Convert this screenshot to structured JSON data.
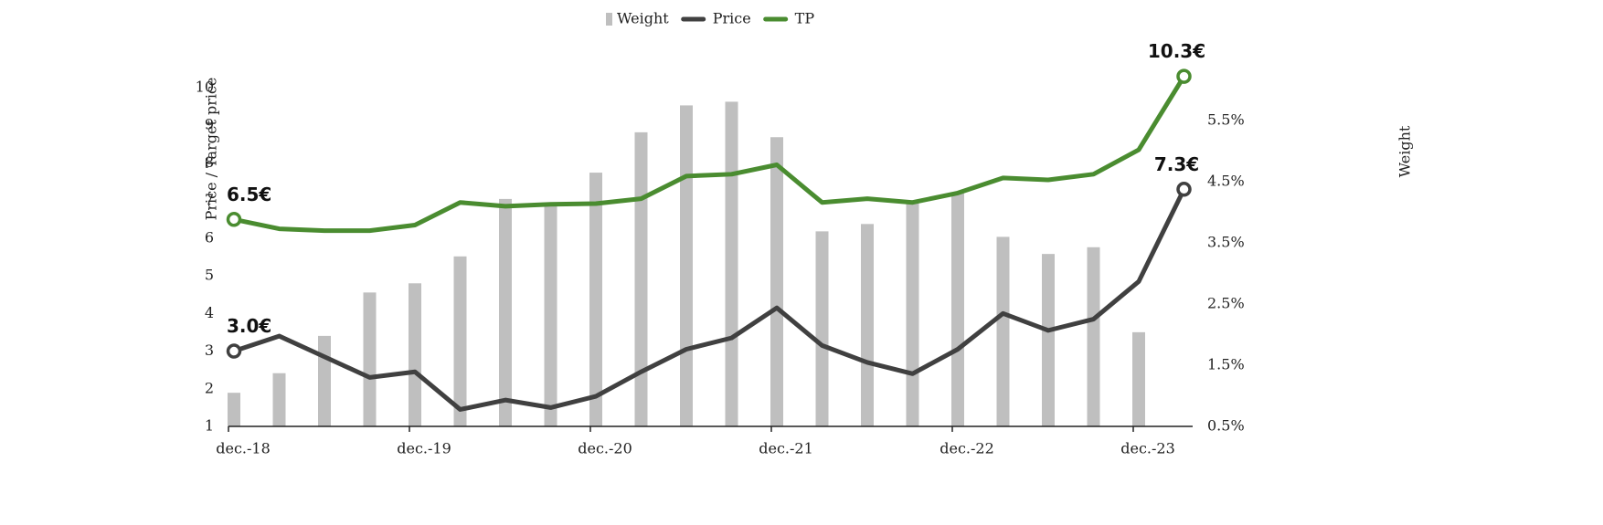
{
  "chart_data": {
    "type": "bar_line",
    "y_label": "Price / Target price",
    "y2_label": "Weight",
    "categories": [
      "dec.-18",
      null,
      null,
      null,
      "dec.-19",
      null,
      null,
      null,
      "dec.-20",
      null,
      null,
      null,
      "dec.-21",
      null,
      null,
      null,
      "dec.-22",
      null,
      null,
      null,
      "dec.-23",
      null
    ],
    "series": [
      {
        "name": "Weight",
        "type": "bar",
        "axis": "y2",
        "color": "#bfbfbf",
        "values": [
          1.05,
          1.37,
          1.98,
          2.69,
          2.84,
          3.28,
          4.22,
          4.13,
          4.65,
          5.31,
          5.75,
          5.81,
          5.23,
          3.69,
          3.81,
          4.19,
          4.31,
          3.6,
          3.32,
          3.43,
          2.04,
          null
        ]
      },
      {
        "name": "Price",
        "type": "line",
        "color": "#404040",
        "values": [
          3.0,
          3.4,
          2.85,
          2.3,
          2.45,
          1.45,
          1.7,
          1.5,
          1.8,
          2.45,
          3.05,
          3.35,
          4.15,
          3.15,
          2.7,
          2.4,
          3.05,
          4.0,
          3.55,
          3.85,
          4.85,
          7.3
        ],
        "value_labels": [
          "3.0€",
          null,
          null,
          null,
          null,
          null,
          null,
          null,
          null,
          null,
          null,
          null,
          null,
          null,
          null,
          null,
          null,
          null,
          null,
          null,
          null,
          "7.3€"
        ]
      },
      {
        "name": "TP",
        "type": "line",
        "color": "#4a8c30",
        "values": [
          6.5,
          6.25,
          6.2,
          6.2,
          6.35,
          6.95,
          6.85,
          6.9,
          6.92,
          7.05,
          7.65,
          7.7,
          7.95,
          6.95,
          7.05,
          6.95,
          7.2,
          7.6,
          7.55,
          7.7,
          8.35,
          10.3
        ],
        "value_labels": [
          "6.5€",
          null,
          null,
          null,
          null,
          null,
          null,
          null,
          null,
          null,
          null,
          null,
          null,
          null,
          null,
          null,
          null,
          null,
          null,
          null,
          null,
          "10.3€"
        ]
      }
    ],
    "ylim": [
      1,
      10
    ],
    "yticks": [
      1,
      2,
      3,
      4,
      5,
      6,
      7,
      8,
      9,
      10
    ],
    "y2lim": [
      0.5,
      6.04
    ],
    "y2ticks": [
      {
        "value": 0.5,
        "label": "0.5%"
      },
      {
        "value": 1.5,
        "label": "1.5%"
      },
      {
        "value": 2.5,
        "label": "2.5%"
      },
      {
        "value": 3.5,
        "label": "3.5%"
      },
      {
        "value": 4.5,
        "label": "4.5%"
      },
      {
        "value": 5.5,
        "label": "5.5%"
      }
    ],
    "legend": "top"
  }
}
